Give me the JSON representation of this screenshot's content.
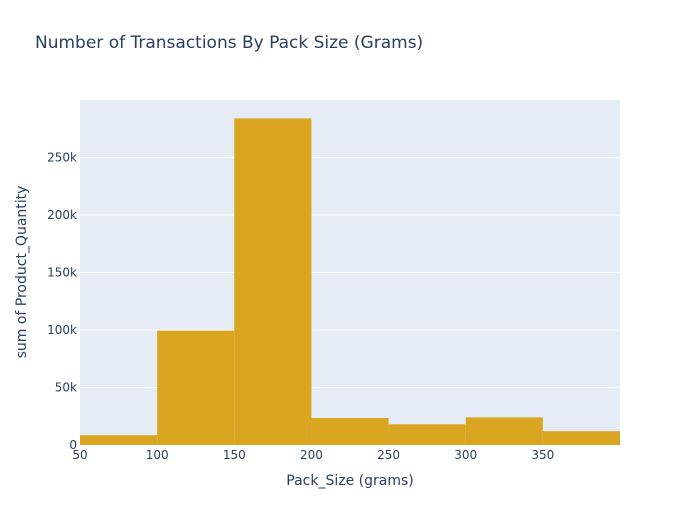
{
  "chart_data": {
    "type": "bar",
    "title": "Number of Transactions By Pack Size (Grams)",
    "xlabel": "Pack_Size (grams)",
    "ylabel": "sum of Product_Quantity",
    "bins": [
      {
        "start": 50,
        "end": 100,
        "value": 8500
      },
      {
        "start": 100,
        "end": 150,
        "value": 99500
      },
      {
        "start": 150,
        "end": 200,
        "value": 284000
      },
      {
        "start": 200,
        "end": 250,
        "value": 23500
      },
      {
        "start": 250,
        "end": 300,
        "value": 18000
      },
      {
        "start": 300,
        "end": 350,
        "value": 24000
      },
      {
        "start": 350,
        "end": 400,
        "value": 12000
      }
    ],
    "xlim": [
      50,
      400
    ],
    "ylim": [
      0,
      300000
    ],
    "xticks": [
      {
        "value": 50,
        "label": "50"
      },
      {
        "value": 100,
        "label": "100"
      },
      {
        "value": 150,
        "label": "150"
      },
      {
        "value": 200,
        "label": "200"
      },
      {
        "value": 250,
        "label": "250"
      },
      {
        "value": 300,
        "label": "300"
      },
      {
        "value": 350,
        "label": "350"
      }
    ],
    "yticks": [
      {
        "value": 0,
        "label": "0"
      },
      {
        "value": 50000,
        "label": "50k"
      },
      {
        "value": 100000,
        "label": "100k"
      },
      {
        "value": 150000,
        "label": "150k"
      },
      {
        "value": 200000,
        "label": "200k"
      },
      {
        "value": 250000,
        "label": "250k"
      }
    ],
    "colors": {
      "bar": "#daa520",
      "plot_bg": "#e5ecf6",
      "grid": "#ffffff",
      "text": "#2a3f5f"
    }
  }
}
